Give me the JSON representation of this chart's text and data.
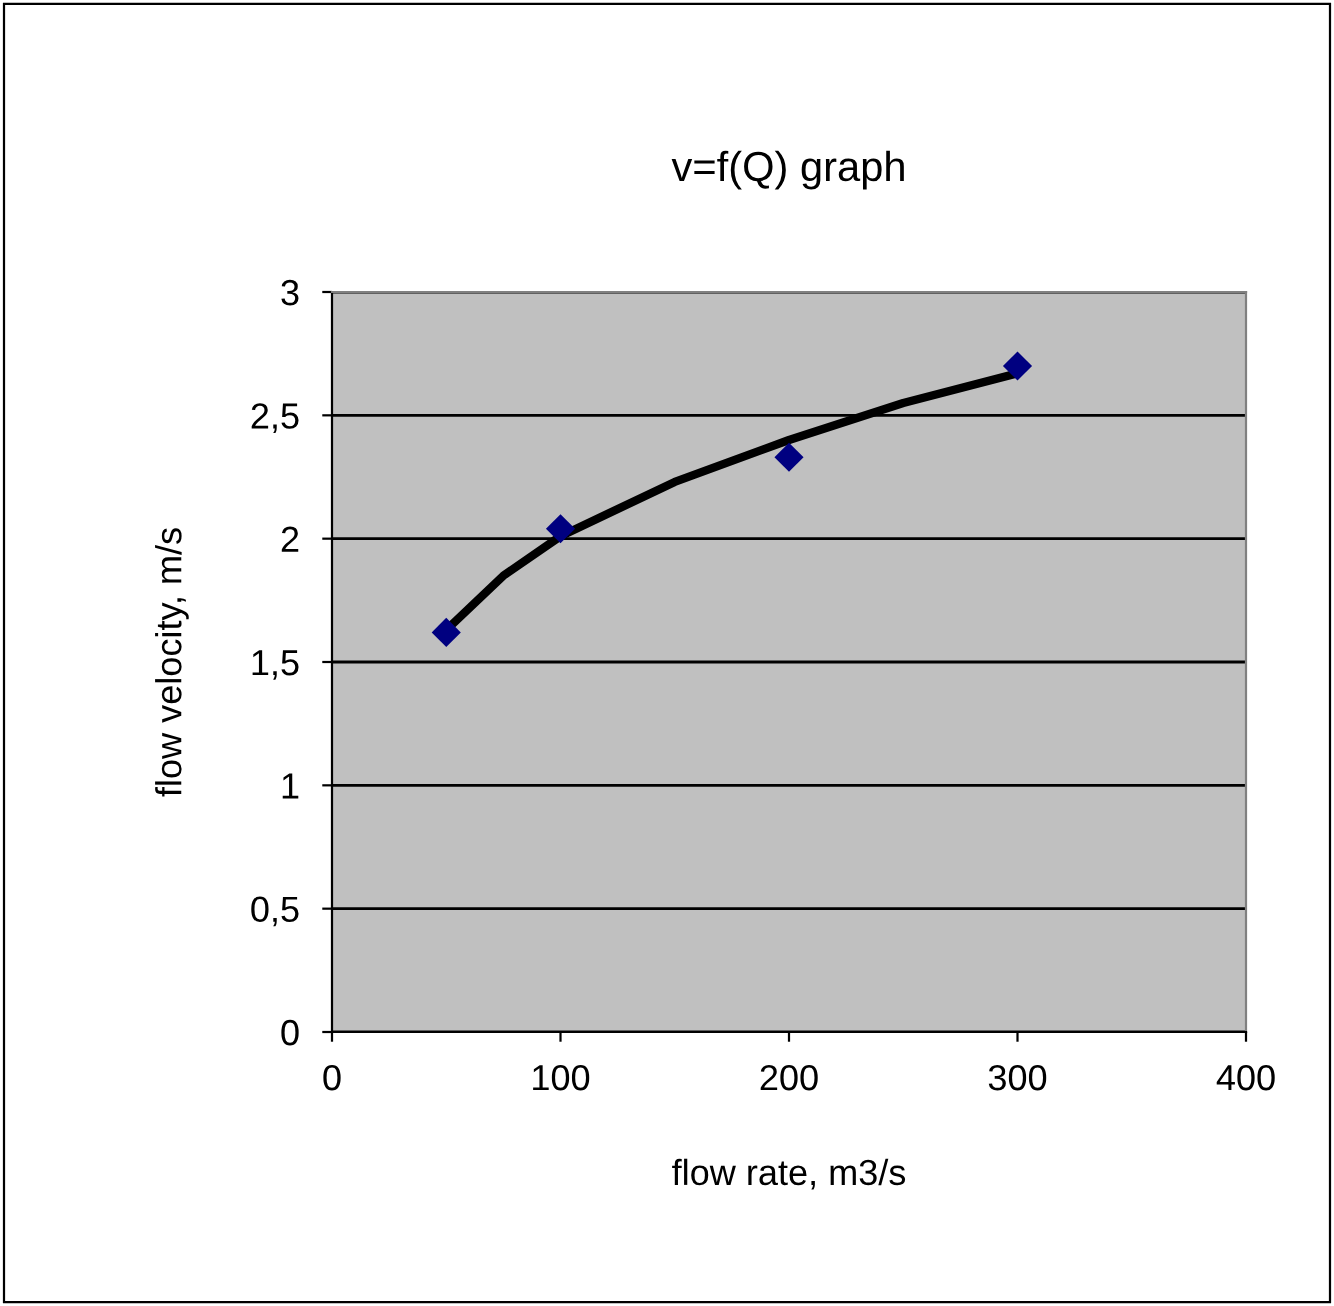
{
  "chart_data": {
    "type": "scatter",
    "title": "v=f(Q) graph",
    "xlabel": "flow rate, m3/s",
    "ylabel": "flow velocity, m/s",
    "xlim": [
      0,
      400
    ],
    "xticks": [
      0,
      100,
      200,
      300,
      400
    ],
    "ylim": [
      0,
      3
    ],
    "yticks": [
      0,
      {
        "value": 0.5,
        "label": "0,5"
      },
      1,
      {
        "value": 1.5,
        "label": "1,5"
      },
      2,
      {
        "value": 2.5,
        "label": "2,5"
      },
      3
    ],
    "grid": "y",
    "marker": "diamond",
    "series": [
      {
        "color": "#000080",
        "x": [
          50,
          100,
          200,
          300
        ],
        "values": [
          1.62,
          2.04,
          2.33,
          2.7
        ]
      },
      {
        "type": "line",
        "color": "#000000",
        "marker": "none",
        "line_style": "solid",
        "x": [
          50,
          75,
          100,
          150,
          200,
          250,
          300
        ],
        "values": [
          1.63,
          1.85,
          2.01,
          2.23,
          2.4,
          2.55,
          2.67
        ]
      }
    ]
  }
}
